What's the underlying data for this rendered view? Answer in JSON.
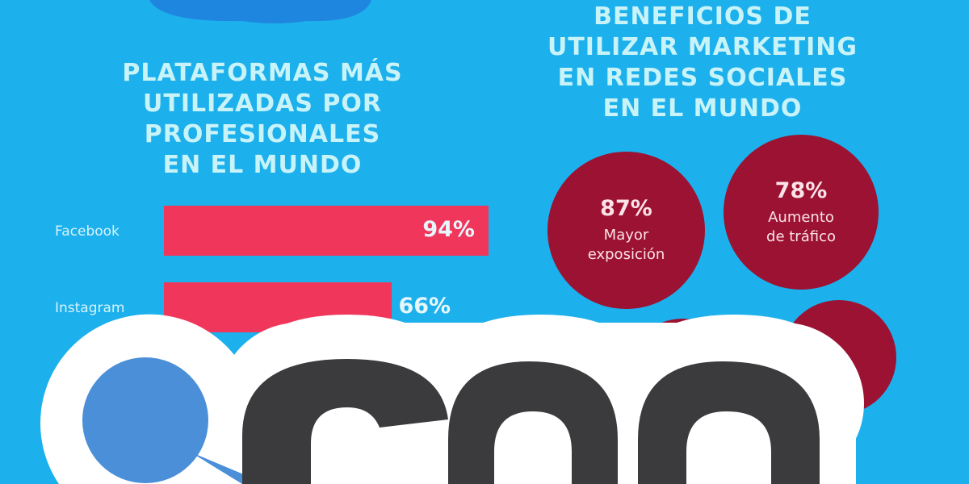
{
  "colors": {
    "background": "#1cb0ec",
    "bar": "#f0365a",
    "circle": "#9c1232",
    "logo_dark": "#3b3b3d",
    "logo_blue": "#4a8fd8"
  },
  "left_title": [
    "PLATAFORMAS MÁS",
    "UTILIZADAS POR",
    "PROFESIONALES",
    "EN EL MUNDO"
  ],
  "right_title": [
    "BENEFICIOS DE",
    "UTILIZAR MARKETING",
    "EN REDES SOCIALES",
    "EN EL MUNDO"
  ],
  "chart_data": [
    {
      "type": "bar",
      "orientation": "horizontal",
      "categories": [
        "Facebook",
        "Instagram"
      ],
      "values": [
        94,
        66
      ],
      "labels": [
        "94%",
        "66%"
      ],
      "xlim": [
        0,
        100
      ]
    },
    {
      "type": "bubbles",
      "items": [
        {
          "value": 87,
          "label": "87%",
          "caption": [
            "Mayor",
            "exposición"
          ]
        },
        {
          "value": 78,
          "label": "78%",
          "caption": [
            "Aumento",
            "de tráfico"
          ]
        }
      ]
    }
  ]
}
